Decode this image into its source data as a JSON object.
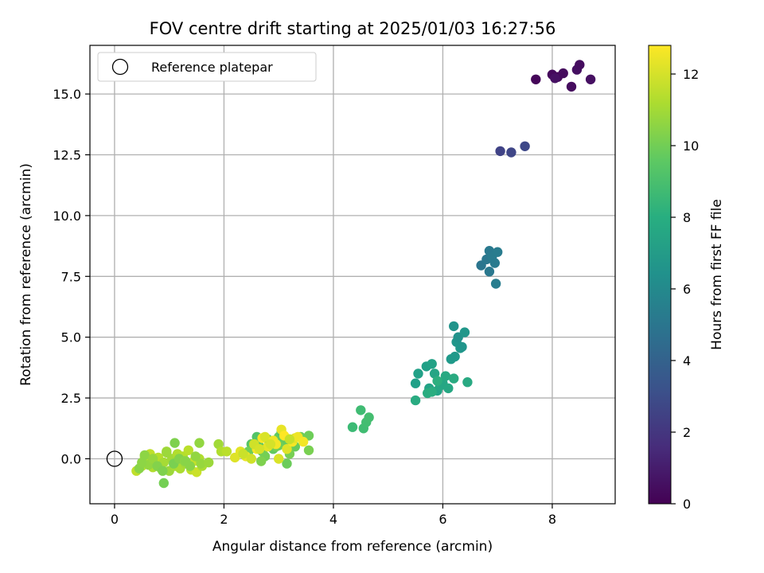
{
  "chart_data": {
    "type": "scatter",
    "title": "FOV centre drift starting at 2025/01/03 16:27:56",
    "xlabel": "Angular distance from reference (arcmin)",
    "ylabel": "Rotation from reference (arcmin)",
    "xlim": [
      -0.45,
      9.15
    ],
    "ylim": [
      -1.85,
      17.0
    ],
    "xticks": [
      "0",
      "2",
      "4",
      "6",
      "8"
    ],
    "yticks": [
      "0.0",
      "2.5",
      "5.0",
      "7.5",
      "10.0",
      "12.5",
      "15.0"
    ],
    "grid": true,
    "legend": {
      "position": "upper-left",
      "entries": [
        "Reference platepar"
      ]
    },
    "reference": {
      "x": 0,
      "y": 0
    },
    "colorbar": {
      "label": "Hours from first FF file",
      "ticks": [
        "0",
        "2",
        "4",
        "6",
        "8",
        "10",
        "12"
      ],
      "range": [
        0,
        12.8
      ],
      "colormap": "viridis"
    },
    "x": [
      7.7,
      8.0,
      8.1,
      8.2,
      8.35,
      8.45,
      8.5,
      8.7,
      8.05,
      7.05,
      7.25,
      7.5,
      6.7,
      6.8,
      6.85,
      6.9,
      6.95,
      7.0,
      6.97,
      6.85,
      6.2,
      6.25,
      6.28,
      6.32,
      6.35,
      6.4,
      6.15,
      6.22,
      5.5,
      5.55,
      5.7,
      5.75,
      5.8,
      5.85,
      5.9,
      5.95,
      6.0,
      6.05,
      6.1,
      6.2,
      6.45,
      5.5,
      5.72,
      5.8,
      5.9,
      4.35,
      4.5,
      4.55,
      4.6,
      4.65,
      2.5,
      2.6,
      2.65,
      2.7,
      2.8,
      2.85,
      2.9,
      3.0,
      3.05,
      3.1,
      3.2,
      3.3,
      3.4,
      3.55,
      2.45,
      2.75,
      2.95,
      3.15,
      3.2,
      3.55,
      2.68,
      3.0,
      2.2,
      2.3,
      2.4,
      2.55,
      2.6,
      2.7,
      2.75,
      2.8,
      2.9,
      2.95,
      3.05,
      3.1,
      3.15,
      3.25,
      3.3,
      3.35,
      3.45,
      2.35,
      2.5,
      2.85,
      3.0,
      3.2,
      2.55,
      2.65,
      0.4,
      0.5,
      0.55,
      0.6,
      0.65,
      0.7,
      0.75,
      0.8,
      0.85,
      0.9,
      0.95,
      1.0,
      1.05,
      1.1,
      1.15,
      1.2,
      1.25,
      1.3,
      1.35,
      1.4,
      1.45,
      1.5,
      1.55,
      1.6,
      0.45,
      0.55,
      0.62,
      0.7,
      0.78,
      0.88,
      0.95,
      1.08,
      1.18,
      1.28,
      1.38,
      1.48,
      1.58,
      1.72,
      1.9,
      1.95,
      2.05,
      0.9,
      1.1,
      1.3,
      1.55,
      0.5
    ],
    "y": [
      15.6,
      15.8,
      15.7,
      15.85,
      15.3,
      16.0,
      16.2,
      15.6,
      15.65,
      12.65,
      12.6,
      12.85,
      7.95,
      8.2,
      8.55,
      8.3,
      8.05,
      8.5,
      7.2,
      7.7,
      5.45,
      4.8,
      5.0,
      4.55,
      4.6,
      5.2,
      4.1,
      4.2,
      3.1,
      3.5,
      3.8,
      2.9,
      3.9,
      3.5,
      2.8,
      3.0,
      3.1,
      3.4,
      2.9,
      3.3,
      3.15,
      2.4,
      2.7,
      2.75,
      3.2,
      1.3,
      2.0,
      1.25,
      1.5,
      1.7,
      0.6,
      0.9,
      0.5,
      0.3,
      0.8,
      0.6,
      0.4,
      0.9,
      1.1,
      0.7,
      0.8,
      0.5,
      0.9,
      0.95,
      0.3,
      0.1,
      0.5,
      -0.2,
      0.2,
      0.35,
      -0.1,
      0.55,
      0.05,
      0.3,
      0.1,
      0.6,
      0.4,
      0.85,
      0.9,
      0.5,
      0.75,
      0.6,
      1.2,
      0.95,
      0.4,
      0.7,
      0.85,
      0.9,
      0.7,
      0.2,
      0.0,
      0.6,
      0.0,
      0.8,
      0.6,
      0.4,
      -0.5,
      -0.3,
      0.1,
      -0.2,
      0.2,
      -0.35,
      -0.1,
      0.05,
      -0.4,
      -0.15,
      0.3,
      -0.5,
      0.0,
      -0.3,
      0.2,
      -0.4,
      0.1,
      -0.2,
      0.35,
      -0.45,
      -0.1,
      -0.55,
      0.0,
      -0.3,
      -0.4,
      0.15,
      -0.25,
      0.0,
      -0.3,
      -0.5,
      0.25,
      -0.2,
      0.0,
      -0.1,
      -0.3,
      0.1,
      -0.2,
      -0.15,
      0.6,
      0.3,
      0.3,
      -1.0,
      0.65,
      -0.1,
      0.65,
      -0.15
    ],
    "hours": [
      0.2,
      0.3,
      0.25,
      0.35,
      0.4,
      0.5,
      0.45,
      0.55,
      0.6,
      2.6,
      2.7,
      2.8,
      5.0,
      5.1,
      5.2,
      5.3,
      5.25,
      5.35,
      5.4,
      5.15,
      6.6,
      6.7,
      6.5,
      6.8,
      6.65,
      6.75,
      6.9,
      6.85,
      7.2,
      7.3,
      7.25,
      7.4,
      7.35,
      7.5,
      7.45,
      7.6,
      7.55,
      7.7,
      7.65,
      7.8,
      7.75,
      7.85,
      7.9,
      7.95,
      8.0,
      8.7,
      8.8,
      8.85,
      8.9,
      8.95,
      9.4,
      9.3,
      9.5,
      9.6,
      9.45,
      9.55,
      9.65,
      9.7,
      9.35,
      9.75,
      9.8,
      9.85,
      9.9,
      9.95,
      10.0,
      10.1,
      10.05,
      9.9,
      10.15,
      10.2,
      10.3,
      10.0,
      12.2,
      12.3,
      12.4,
      12.5,
      12.6,
      12.7,
      12.1,
      12.3,
      12.5,
      12.6,
      12.4,
      12.8,
      12.2,
      12.7,
      12.3,
      12.5,
      12.6,
      11.8,
      11.9,
      12.0,
      12.1,
      11.7,
      11.9,
      12.0,
      11.6,
      11.5,
      11.7,
      11.4,
      11.6,
      11.3,
      11.5,
      11.4,
      11.2,
      11.1,
      11.0,
      10.9,
      11.0,
      11.1,
      11.3,
      11.2,
      11.4,
      11.0,
      11.5,
      11.6,
      11.7,
      11.8,
      11.3,
      11.2,
      10.5,
      10.6,
      10.7,
      10.8,
      10.4,
      10.3,
      10.9,
      10.2,
      10.4,
      10.6,
      10.5,
      10.7,
      10.8,
      10.9,
      11.0,
      11.3,
      11.5,
      10.1,
      10.3,
      10.5,
      10.7,
      10.6
    ]
  }
}
